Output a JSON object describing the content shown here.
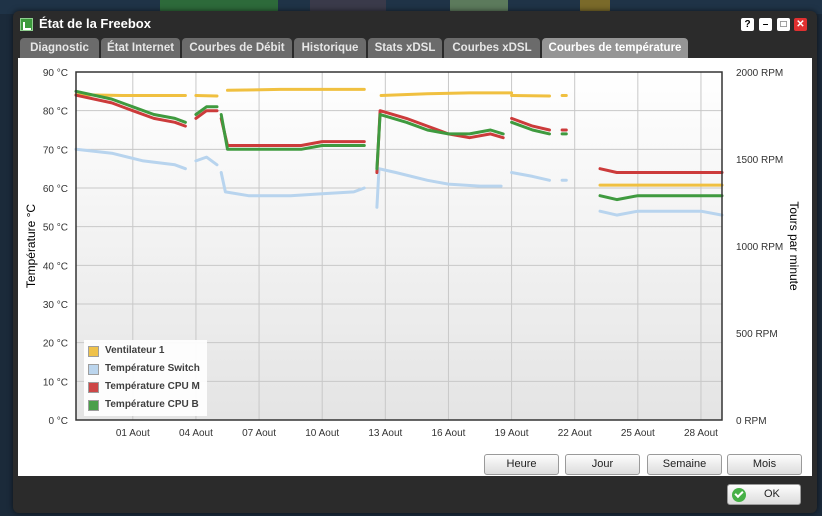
{
  "window": {
    "title": "État de la Freebox",
    "help_label": "?",
    "minimize_label": "–",
    "maximize_label": "□",
    "close_label": "✕"
  },
  "tabs": [
    {
      "label": "Diagnostic"
    },
    {
      "label": "État Internet"
    },
    {
      "label": "Courbes de Débit"
    },
    {
      "label": "Historique"
    },
    {
      "label": "Stats xDSL"
    },
    {
      "label": "Courbes xDSL"
    },
    {
      "label": "Courbes de température",
      "active": true
    }
  ],
  "period_buttons": [
    {
      "label": "Heure"
    },
    {
      "label": "Jour"
    },
    {
      "label": "Semaine"
    },
    {
      "label": "Mois"
    }
  ],
  "ok_label": "OK",
  "chart_data": {
    "type": "line",
    "ylabel": "Température °C",
    "y2label": "Tours par minute",
    "ylim": [
      0,
      90
    ],
    "y2lim": [
      0,
      2000
    ],
    "yticks": [
      "0 °C",
      "10 °C",
      "20 °C",
      "30 °C",
      "40 °C",
      "50 °C",
      "60 °C",
      "70 °C",
      "80 °C",
      "90 °C"
    ],
    "y2ticks": [
      "0 RPM",
      "500 RPM",
      "1000 RPM",
      "1500 RPM",
      "2000 RPM"
    ],
    "xlim": [
      -1.7,
      29
    ],
    "xticks": [
      {
        "x": 1,
        "label": "01 Aout"
      },
      {
        "x": 4,
        "label": "04 Aout"
      },
      {
        "x": 7,
        "label": "07 Aout"
      },
      {
        "x": 10,
        "label": "10 Aout"
      },
      {
        "x": 13,
        "label": "13 Aout"
      },
      {
        "x": 16,
        "label": "16 Aout"
      },
      {
        "x": 19,
        "label": "19 Aout"
      },
      {
        "x": 22,
        "label": "22 Aout"
      },
      {
        "x": 25,
        "label": "25 Aout"
      },
      {
        "x": 28,
        "label": "28 Aout"
      }
    ],
    "grid": true,
    "legend_position": "bottom-left",
    "series": [
      {
        "name": "Ventilateur 1",
        "color": "#f0c040",
        "axis": "right",
        "segments": [
          [
            [
              -1.7,
              1870
            ],
            [
              0.5,
              1865
            ],
            [
              2.0,
              1865
            ],
            [
              3.5,
              1865
            ]
          ],
          [
            [
              4.0,
              1865
            ],
            [
              5.0,
              1862
            ]
          ],
          [
            [
              5.5,
              1895
            ],
            [
              8.0,
              1900
            ],
            [
              10.0,
              1900
            ],
            [
              12.0,
              1900
            ]
          ],
          [
            [
              12.8,
              1865
            ],
            [
              15.0,
              1875
            ],
            [
              17.0,
              1880
            ],
            [
              19.0,
              1880
            ]
          ],
          [
            [
              19.0,
              1865
            ],
            [
              20.8,
              1862
            ]
          ],
          [
            [
              21.4,
              1865
            ],
            [
              21.6,
              1865
            ]
          ],
          [
            [
              23.2,
              1350
            ],
            [
              26.0,
              1350
            ],
            [
              29.0,
              1350
            ]
          ]
        ]
      },
      {
        "name": "Température Switch",
        "color": "#b8d4ee",
        "axis": "left",
        "segments": [
          [
            [
              -1.7,
              70
            ],
            [
              0.0,
              69
            ],
            [
              1.5,
              67
            ],
            [
              3.0,
              66
            ],
            [
              3.5,
              65
            ]
          ],
          [
            [
              4.0,
              67
            ],
            [
              4.5,
              68
            ],
            [
              5.0,
              66
            ]
          ],
          [
            [
              5.2,
              64
            ],
            [
              5.4,
              59
            ],
            [
              6.5,
              58
            ],
            [
              8.5,
              58
            ],
            [
              10.0,
              58.5
            ],
            [
              11.5,
              59
            ],
            [
              12.0,
              60
            ]
          ],
          [
            [
              12.6,
              55
            ],
            [
              12.7,
              65
            ],
            [
              13.5,
              64
            ],
            [
              15.0,
              62
            ],
            [
              16.0,
              61
            ],
            [
              17.5,
              60.5
            ],
            [
              18.5,
              60.5
            ]
          ],
          [
            [
              19.0,
              64
            ],
            [
              20.0,
              63
            ],
            [
              20.8,
              62
            ]
          ],
          [
            [
              21.4,
              62
            ],
            [
              21.6,
              62
            ]
          ],
          [
            [
              23.2,
              54
            ],
            [
              24.0,
              53
            ],
            [
              25.0,
              54
            ],
            [
              26.5,
              54
            ],
            [
              28.0,
              54
            ],
            [
              29.0,
              53
            ]
          ]
        ]
      },
      {
        "name": "Température CPU M",
        "color": "#cc3b3b",
        "axis": "left",
        "segments": [
          [
            [
              -1.7,
              84
            ],
            [
              0.0,
              82
            ],
            [
              1.0,
              80
            ],
            [
              2.0,
              78
            ],
            [
              3.0,
              77
            ],
            [
              3.5,
              76
            ]
          ],
          [
            [
              4.0,
              78
            ],
            [
              4.5,
              80
            ],
            [
              5.0,
              80
            ]
          ],
          [
            [
              5.2,
              78
            ],
            [
              5.5,
              71
            ],
            [
              7.0,
              71
            ],
            [
              9.0,
              71
            ],
            [
              10.0,
              72
            ],
            [
              11.5,
              72
            ],
            [
              12.0,
              72
            ]
          ],
          [
            [
              12.6,
              64
            ],
            [
              12.75,
              80
            ],
            [
              14.0,
              78
            ],
            [
              15.0,
              76
            ],
            [
              16.0,
              74
            ],
            [
              17.0,
              73
            ],
            [
              18.0,
              74
            ],
            [
              18.6,
              73
            ]
          ],
          [
            [
              19.0,
              78
            ],
            [
              20.0,
              76
            ],
            [
              20.8,
              75
            ]
          ],
          [
            [
              21.4,
              75
            ],
            [
              21.6,
              75
            ]
          ],
          [
            [
              23.2,
              65
            ],
            [
              24.0,
              64
            ],
            [
              25.0,
              64
            ],
            [
              26.0,
              64
            ],
            [
              27.0,
              64
            ],
            [
              28.0,
              64
            ],
            [
              29.0,
              64
            ]
          ]
        ]
      },
      {
        "name": "Température CPU B",
        "color": "#3f9a3f",
        "axis": "left",
        "segments": [
          [
            [
              -1.7,
              85
            ],
            [
              0.0,
              83
            ],
            [
              1.0,
              81
            ],
            [
              2.0,
              79
            ],
            [
              3.0,
              78
            ],
            [
              3.5,
              77
            ]
          ],
          [
            [
              4.0,
              79
            ],
            [
              4.5,
              81
            ],
            [
              5.0,
              81
            ]
          ],
          [
            [
              5.2,
              79
            ],
            [
              5.5,
              70
            ],
            [
              7.0,
              70
            ],
            [
              9.0,
              70
            ],
            [
              10.0,
              71
            ],
            [
              11.5,
              71
            ],
            [
              12.0,
              71
            ]
          ],
          [
            [
              12.6,
              65
            ],
            [
              12.75,
              79
            ],
            [
              14.0,
              77
            ],
            [
              15.0,
              75
            ],
            [
              16.0,
              74
            ],
            [
              17.0,
              74
            ],
            [
              18.0,
              75
            ],
            [
              18.6,
              74
            ]
          ],
          [
            [
              19.0,
              77
            ],
            [
              20.0,
              75
            ],
            [
              20.8,
              74
            ]
          ],
          [
            [
              21.4,
              74
            ],
            [
              21.6,
              74
            ]
          ],
          [
            [
              23.2,
              58
            ],
            [
              24.0,
              57
            ],
            [
              25.0,
              58
            ],
            [
              26.0,
              58
            ],
            [
              27.0,
              58
            ],
            [
              28.0,
              58
            ],
            [
              29.0,
              58
            ]
          ]
        ]
      }
    ]
  }
}
